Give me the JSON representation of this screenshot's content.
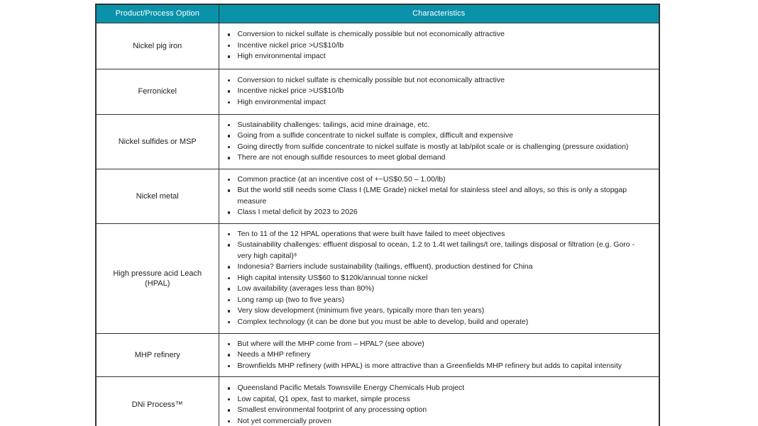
{
  "colors": {
    "header_bg": "#0992A9",
    "header_text": "#FFFFFF",
    "border": "#333333",
    "body_text": "#222222",
    "page_bg": "#FFFFFF"
  },
  "table": {
    "header": {
      "option_label": "Product/Process Option",
      "characteristics_label": "Characteristics"
    },
    "rows": [
      {
        "option": "Nickel pig iron",
        "characteristics": [
          "Conversion to nickel sulfate is chemically possible but not economically attractive",
          "Incentive nickel price >US$10/lb",
          "High environmental impact"
        ]
      },
      {
        "option": "Ferronickel",
        "characteristics": [
          "Conversion to nickel sulfate is chemically possible but not economically attractive",
          "Incentive nickel price >US$10/lb",
          "High environmental impact"
        ]
      },
      {
        "option": "Nickel sulfides or MSP",
        "characteristics": [
          "Sustainability challenges: tailings, acid mine drainage, etc.",
          "Going from a sulfide concentrate to nickel sulfate is complex, difficult and expensive",
          "Going directly from sulfide concentrate to nickel sulfate is mostly at lab/pilot scale or is challenging (pressure oxidation)",
          "There are not enough sulfide resources to meet global demand"
        ]
      },
      {
        "option": "Nickel metal",
        "characteristics": [
          "Common practice (at an incentive cost of +~US$0.50 – 1.00/lb)",
          "But the world still needs some Class I (LME Grade) nickel metal for stainless steel and alloys, so this is only a stopgap measure",
          "Class I metal deficit by 2023 to 2026"
        ]
      },
      {
        "option": "High pressure acid Leach (HPAL)",
        "characteristics": [
          "Ten to 11 of the 12 HPAL operations that were built have failed to meet objectives",
          "Sustainability challenges: effluent disposal to ocean, 1.2 to 1.4t wet tailings/t ore, tailings disposal or filtration (e.g. Goro - very high capital)⁸",
          "Indonesia? Barriers include sustainability (tailings, effluent), production destined for China",
          "High capital intensity US$60 to $120k/annual tonne nickel",
          "Low availability (averages less than 80%)",
          "Long ramp up (two to five years)",
          "Very slow development (minimum five years, typically more than ten years)",
          "Complex technology (it can be done but you must be able to develop, build and operate)"
        ]
      },
      {
        "option": "MHP refinery",
        "characteristics": [
          "But where will the MHP come from – HPAL? (see above)",
          "Needs a MHP refinery",
          "Brownfields MHP refinery (with HPAL) is more attractive than a Greenfields MHP refinery but adds to capital intensity"
        ]
      },
      {
        "option": "DNi Process™",
        "characteristics": [
          "Queensland Pacific Metals Townsville Energy Chemicals Hub project",
          "Low capital, Q1 opex, fast to market, simple process",
          "Smallest environmental footprint of any processing option",
          "Not yet commercially proven"
        ]
      }
    ]
  }
}
